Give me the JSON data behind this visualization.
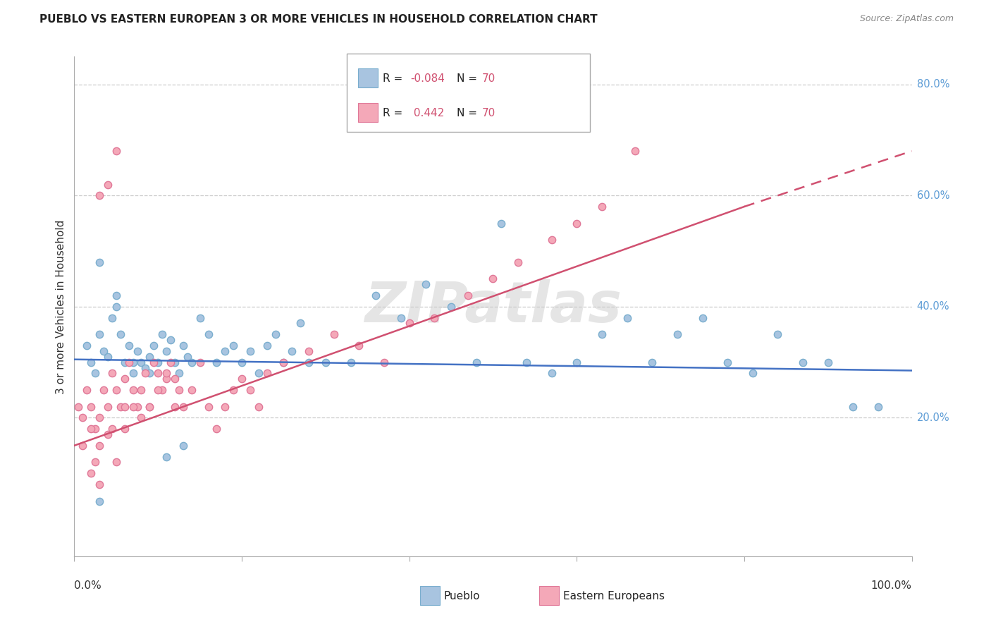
{
  "title": "PUEBLO VS EASTERN EUROPEAN 3 OR MORE VEHICLES IN HOUSEHOLD CORRELATION CHART",
  "source": "Source: ZipAtlas.com",
  "ylabel": "3 or more Vehicles in Household",
  "xlim": [
    0,
    100
  ],
  "ylim": [
    -5,
    85
  ],
  "ytick_values": [
    20,
    40,
    60,
    80
  ],
  "watermark": "ZIPatlas",
  "pueblo_color": "#a8c4e0",
  "pueblo_edge_color": "#7aaece",
  "eastern_color": "#f4a8b8",
  "eastern_edge_color": "#e07898",
  "pueblo_line_color": "#4472c4",
  "eastern_line_color": "#d05070",
  "pueblo_R": -0.084,
  "pueblo_N": 70,
  "eastern_R": 0.442,
  "eastern_N": 70,
  "background_color": "#ffffff",
  "grid_color": "#cccccc",
  "ytick_color": "#5b9bd5",
  "title_fontsize": 11,
  "label_fontsize": 11,
  "source_fontsize": 9,
  "marker_size": 55,
  "pueblo_x": [
    1.5,
    2.0,
    2.5,
    3.0,
    3.5,
    4.0,
    4.5,
    5.0,
    5.5,
    6.0,
    6.5,
    7.0,
    7.5,
    8.0,
    8.5,
    9.0,
    9.5,
    10.0,
    10.5,
    11.0,
    11.5,
    12.0,
    12.5,
    13.0,
    13.5,
    14.0,
    15.0,
    16.0,
    17.0,
    18.0,
    19.0,
    20.0,
    21.0,
    22.0,
    23.0,
    24.0,
    25.0,
    26.0,
    27.0,
    28.0,
    30.0,
    33.0,
    36.0,
    39.0,
    42.0,
    45.0,
    48.0,
    51.0,
    54.0,
    57.0,
    60.0,
    63.0,
    66.0,
    69.0,
    72.0,
    75.0,
    78.0,
    81.0,
    84.0,
    87.0,
    90.0,
    93.0,
    96.0,
    3.0,
    5.0,
    7.0,
    9.0,
    11.0,
    13.0,
    3.0
  ],
  "pueblo_y": [
    33.0,
    30.0,
    28.0,
    35.0,
    32.0,
    31.0,
    38.0,
    42.0,
    35.0,
    30.0,
    33.0,
    28.0,
    32.0,
    30.0,
    29.0,
    31.0,
    33.0,
    30.0,
    35.0,
    32.0,
    34.0,
    30.0,
    28.0,
    33.0,
    31.0,
    30.0,
    38.0,
    35.0,
    30.0,
    32.0,
    33.0,
    30.0,
    32.0,
    28.0,
    33.0,
    35.0,
    30.0,
    32.0,
    37.0,
    30.0,
    30.0,
    30.0,
    42.0,
    38.0,
    44.0,
    40.0,
    30.0,
    55.0,
    30.0,
    28.0,
    30.0,
    35.0,
    38.0,
    30.0,
    35.0,
    38.0,
    30.0,
    28.0,
    35.0,
    30.0,
    30.0,
    22.0,
    22.0,
    48.0,
    40.0,
    30.0,
    28.0,
    13.0,
    15.0,
    5.0
  ],
  "eastern_x": [
    0.5,
    1.0,
    1.5,
    2.0,
    2.5,
    3.0,
    3.5,
    4.0,
    4.5,
    5.0,
    5.5,
    6.0,
    6.5,
    7.0,
    7.5,
    8.0,
    8.5,
    9.0,
    9.5,
    10.0,
    10.5,
    11.0,
    11.5,
    12.0,
    12.5,
    13.0,
    14.0,
    15.0,
    16.0,
    17.0,
    18.0,
    19.0,
    20.0,
    21.0,
    22.0,
    23.0,
    25.0,
    28.0,
    31.0,
    34.0,
    37.0,
    40.0,
    43.0,
    47.0,
    50.0,
    53.0,
    57.0,
    60.0,
    63.0,
    67.0,
    1.0,
    2.0,
    3.0,
    4.0,
    5.0,
    6.0,
    7.0,
    8.0,
    9.0,
    10.0,
    11.0,
    12.0,
    3.0,
    4.0,
    5.0,
    2.0,
    3.0,
    2.5,
    4.5,
    6.0
  ],
  "eastern_y": [
    22.0,
    20.0,
    25.0,
    22.0,
    18.0,
    20.0,
    25.0,
    22.0,
    28.0,
    25.0,
    22.0,
    27.0,
    30.0,
    25.0,
    22.0,
    25.0,
    28.0,
    22.0,
    30.0,
    28.0,
    25.0,
    27.0,
    30.0,
    22.0,
    25.0,
    22.0,
    25.0,
    30.0,
    22.0,
    18.0,
    22.0,
    25.0,
    27.0,
    25.0,
    22.0,
    28.0,
    30.0,
    32.0,
    35.0,
    33.0,
    30.0,
    37.0,
    38.0,
    42.0,
    45.0,
    48.0,
    52.0,
    55.0,
    58.0,
    68.0,
    15.0,
    18.0,
    15.0,
    17.0,
    12.0,
    18.0,
    22.0,
    20.0,
    22.0,
    25.0,
    28.0,
    27.0,
    60.0,
    62.0,
    68.0,
    10.0,
    8.0,
    12.0,
    18.0,
    22.0
  ]
}
